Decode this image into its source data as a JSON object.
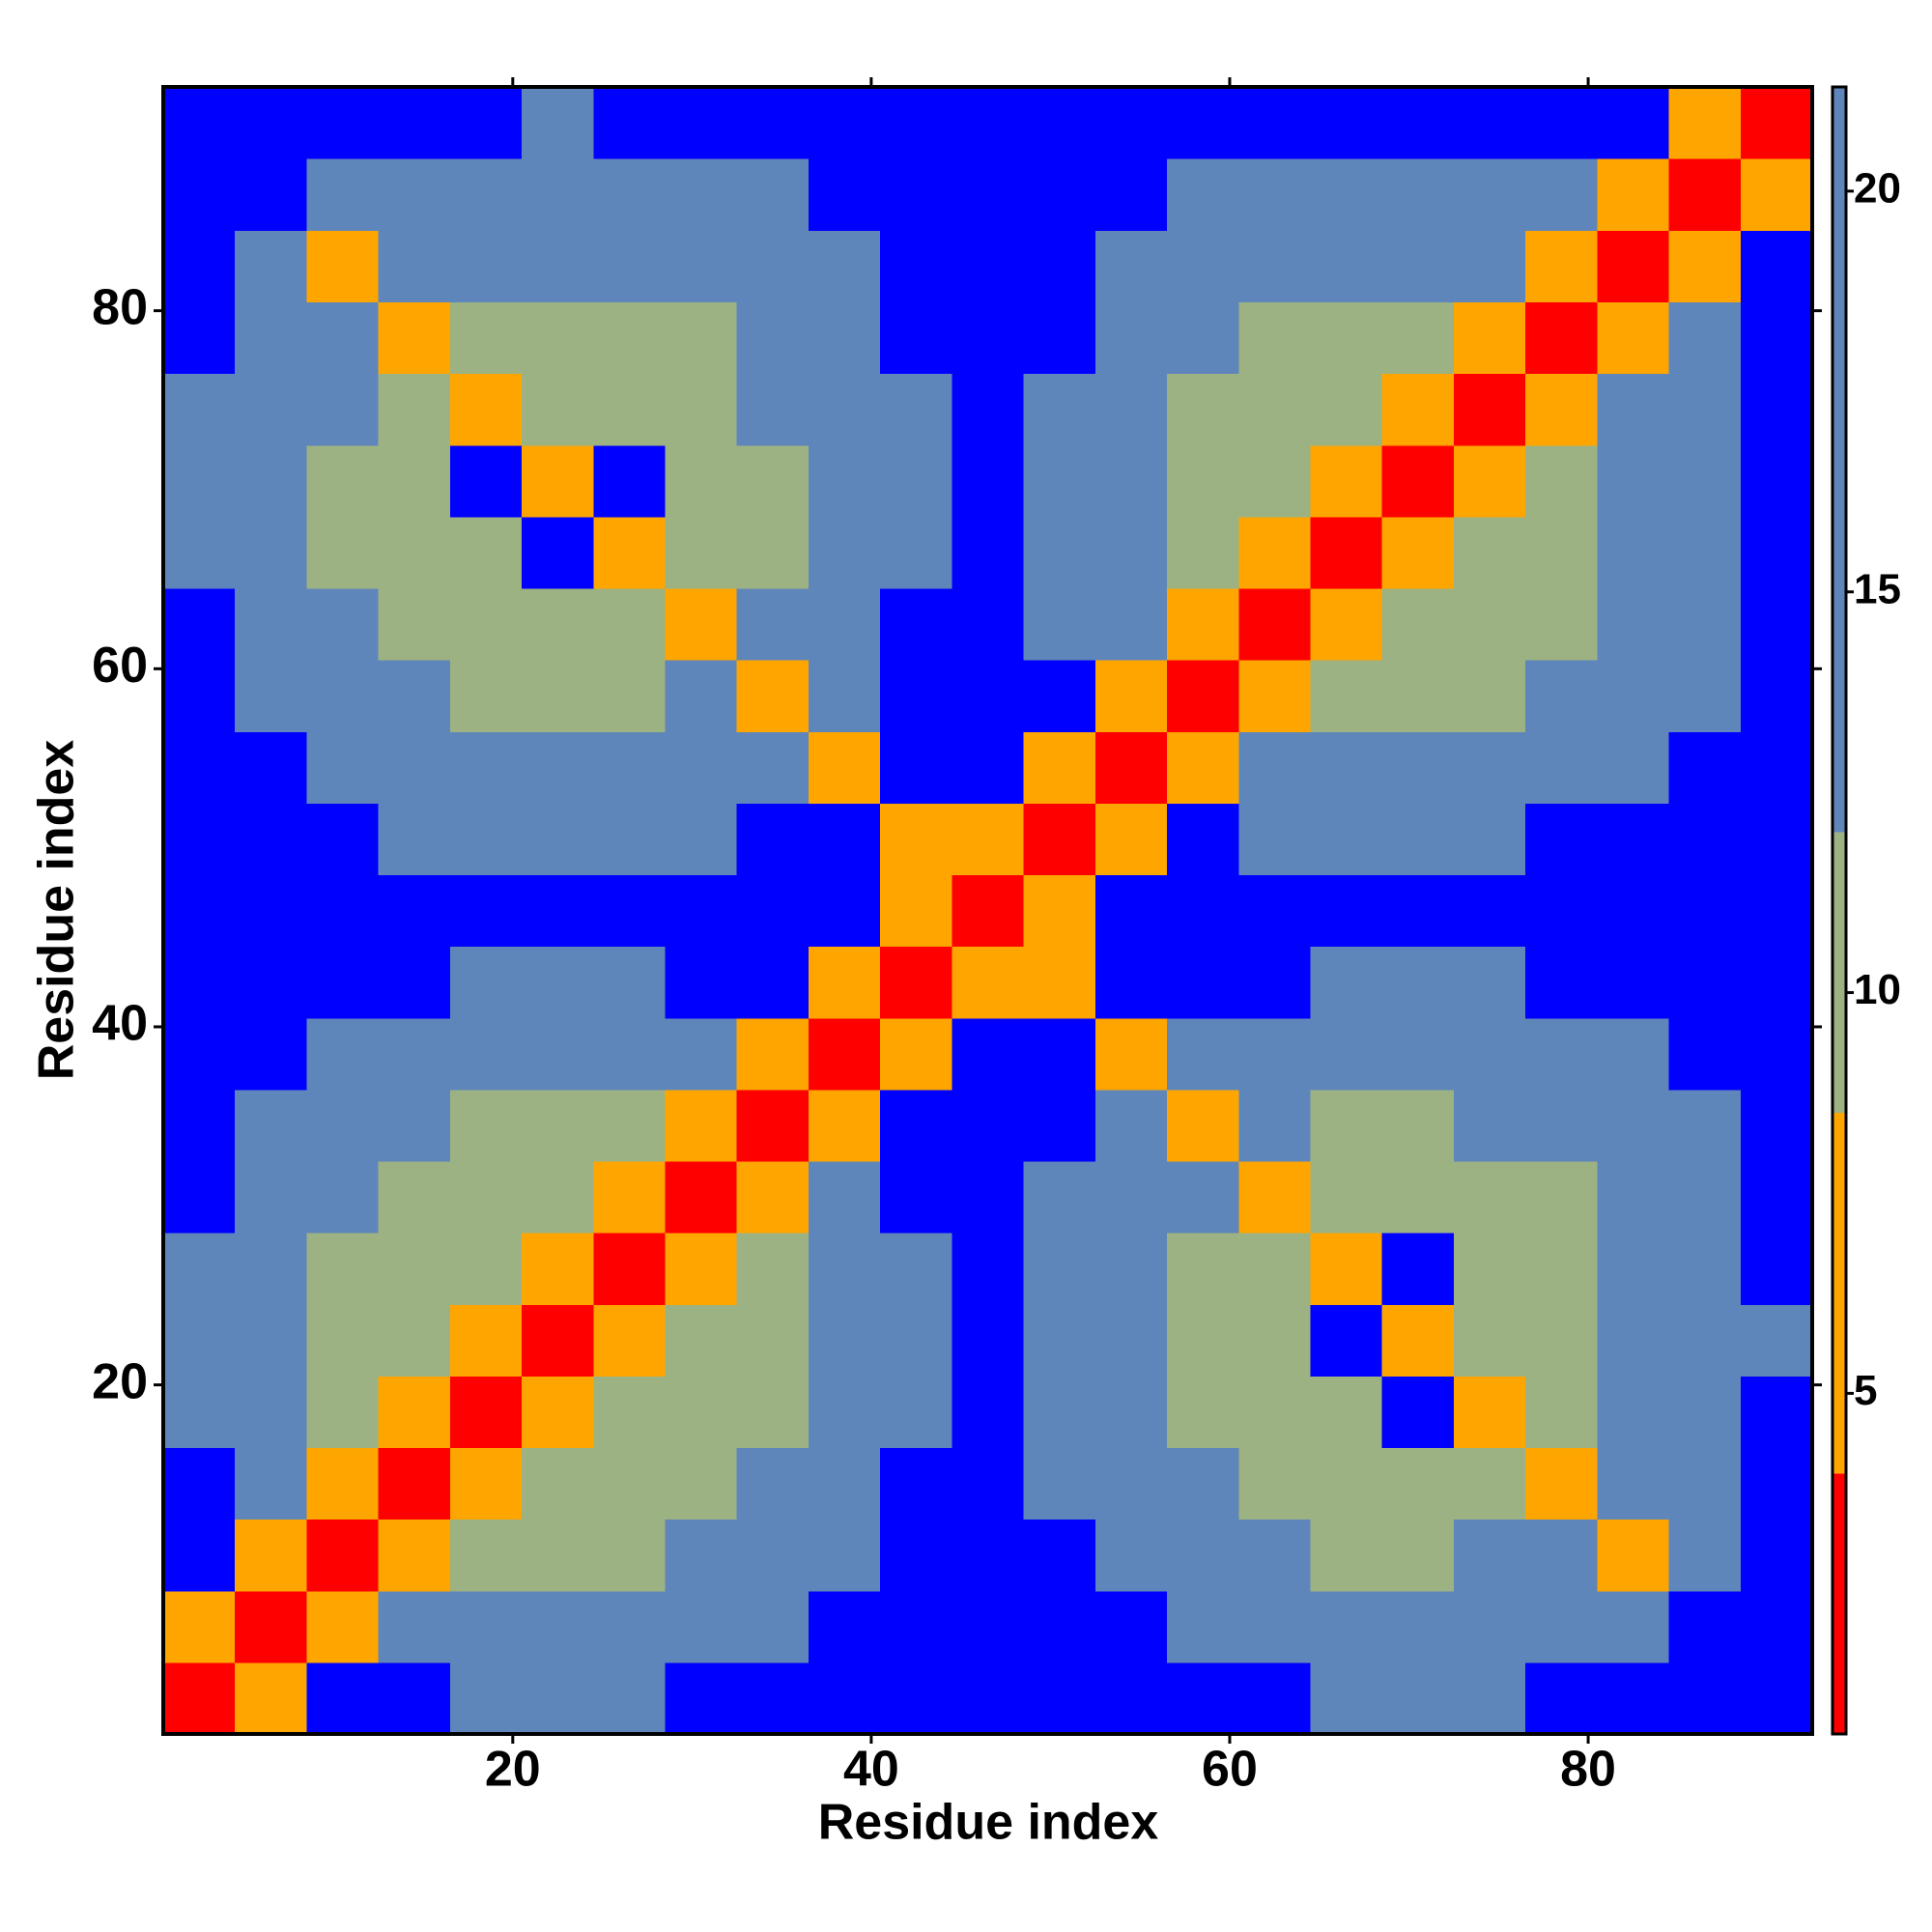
{
  "chart_data": {
    "type": "heatmap",
    "x_label": "Residue index",
    "y_label": "Residue index",
    "x_bins": [
      0.5,
      4.5,
      8.5,
      12.5,
      16.5,
      20.5,
      24.5,
      28.5,
      32.5,
      36.5,
      40.5,
      44.5,
      48.5,
      52.5,
      56.5,
      60.5,
      64.5,
      68.5,
      72.5,
      76.5,
      80.5,
      84.5,
      88.5,
      92.5
    ],
    "y_bins": [
      0.5,
      4.5,
      8.5,
      12.5,
      16.5,
      20.5,
      24.5,
      28.5,
      32.5,
      36.5,
      40.5,
      44.5,
      48.5,
      52.5,
      56.5,
      60.5,
      64.5,
      68.5,
      72.5,
      76.5,
      80.5,
      84.5,
      88.5,
      92.5
    ],
    "xlim": [
      0.5,
      92.5
    ],
    "ylim": [
      0.5,
      92.5
    ],
    "xticks": [
      20,
      40,
      60,
      80
    ],
    "yticks": [
      20,
      40,
      60,
      80
    ],
    "z": [
      [
        2,
        6,
        22,
        22,
        15,
        15,
        15,
        22,
        22,
        22,
        22,
        22,
        22,
        22,
        22,
        22,
        15,
        15,
        15,
        22,
        22,
        22,
        22
      ],
      [
        6,
        2,
        6,
        15,
        15,
        15,
        15,
        15,
        15,
        22,
        22,
        22,
        22,
        22,
        15,
        15,
        15,
        15,
        15,
        15,
        15,
        22,
        22
      ],
      [
        22,
        6,
        2,
        6,
        10,
        10,
        10,
        15,
        15,
        15,
        22,
        22,
        22,
        15,
        15,
        15,
        10,
        10,
        15,
        15,
        6,
        15,
        22
      ],
      [
        22,
        15,
        6,
        2,
        6,
        10,
        10,
        10,
        15,
        15,
        22,
        22,
        15,
        15,
        15,
        10,
        10,
        10,
        10,
        6,
        15,
        15,
        22
      ],
      [
        15,
        15,
        10,
        6,
        2,
        6,
        10,
        10,
        10,
        15,
        15,
        22,
        15,
        15,
        10,
        10,
        10,
        22,
        6,
        10,
        15,
        15,
        22
      ],
      [
        15,
        15,
        10,
        10,
        6,
        2,
        6,
        10,
        10,
        15,
        15,
        22,
        15,
        15,
        10,
        10,
        22,
        6,
        10,
        10,
        15,
        15,
        15
      ],
      [
        15,
        15,
        10,
        10,
        10,
        6,
        2,
        6,
        10,
        15,
        15,
        22,
        15,
        15,
        10,
        10,
        6,
        22,
        10,
        10,
        15,
        15,
        22
      ],
      [
        22,
        15,
        15,
        10,
        10,
        10,
        6,
        2,
        6,
        15,
        22,
        22,
        15,
        15,
        15,
        6,
        10,
        10,
        10,
        10,
        15,
        15,
        22
      ],
      [
        22,
        15,
        15,
        15,
        10,
        10,
        10,
        6,
        2,
        6,
        22,
        22,
        22,
        15,
        6,
        15,
        10,
        10,
        15,
        15,
        15,
        15,
        22
      ],
      [
        22,
        22,
        15,
        15,
        15,
        15,
        15,
        15,
        6,
        2,
        6,
        22,
        22,
        6,
        15,
        15,
        15,
        15,
        15,
        15,
        15,
        22,
        22
      ],
      [
        22,
        22,
        22,
        22,
        15,
        15,
        15,
        22,
        22,
        6,
        2,
        6,
        6,
        22,
        22,
        22,
        15,
        15,
        15,
        22,
        22,
        22,
        22
      ],
      [
        22,
        22,
        22,
        22,
        22,
        22,
        22,
        22,
        22,
        22,
        6,
        2,
        6,
        22,
        22,
        22,
        22,
        22,
        22,
        22,
        22,
        22,
        22
      ],
      [
        22,
        22,
        22,
        15,
        15,
        15,
        15,
        15,
        22,
        22,
        6,
        6,
        2,
        6,
        22,
        15,
        15,
        15,
        15,
        22,
        22,
        22,
        22
      ],
      [
        22,
        22,
        15,
        15,
        15,
        15,
        15,
        15,
        15,
        6,
        22,
        22,
        6,
        2,
        6,
        15,
        15,
        15,
        15,
        15,
        15,
        22,
        22
      ],
      [
        22,
        15,
        15,
        15,
        10,
        10,
        10,
        15,
        6,
        15,
        22,
        22,
        22,
        6,
        2,
        6,
        10,
        10,
        10,
        15,
        15,
        15,
        22
      ],
      [
        22,
        15,
        15,
        10,
        10,
        10,
        10,
        6,
        15,
        15,
        22,
        22,
        15,
        15,
        6,
        2,
        6,
        10,
        10,
        10,
        15,
        15,
        22
      ],
      [
        15,
        15,
        10,
        10,
        10,
        22,
        6,
        10,
        10,
        15,
        15,
        22,
        15,
        15,
        10,
        6,
        2,
        6,
        10,
        10,
        15,
        15,
        22
      ],
      [
        15,
        15,
        10,
        10,
        22,
        6,
        22,
        10,
        10,
        15,
        15,
        22,
        15,
        15,
        10,
        10,
        6,
        2,
        6,
        10,
        15,
        15,
        22
      ],
      [
        15,
        15,
        15,
        10,
        6,
        10,
        10,
        10,
        15,
        15,
        15,
        22,
        15,
        15,
        10,
        10,
        10,
        6,
        2,
        6,
        15,
        15,
        22
      ],
      [
        22,
        15,
        15,
        6,
        10,
        10,
        10,
        10,
        15,
        15,
        22,
        22,
        22,
        15,
        15,
        10,
        10,
        10,
        6,
        2,
        6,
        15,
        22
      ],
      [
        22,
        15,
        6,
        15,
        15,
        15,
        15,
        15,
        15,
        15,
        22,
        22,
        22,
        15,
        15,
        15,
        15,
        15,
        15,
        6,
        2,
        6,
        22
      ],
      [
        22,
        22,
        15,
        15,
        15,
        15,
        15,
        15,
        15,
        22,
        22,
        22,
        22,
        22,
        15,
        15,
        15,
        15,
        15,
        15,
        6,
        2,
        6
      ],
      [
        22,
        22,
        22,
        22,
        22,
        15,
        22,
        22,
        22,
        22,
        22,
        22,
        22,
        22,
        22,
        22,
        22,
        22,
        22,
        22,
        22,
        6,
        2
      ]
    ],
    "zlim": [
      0.75,
      21.3
    ],
    "zticks": [
      5,
      10,
      15,
      20
    ],
    "color_edges": [
      0.75,
      4,
      8.5,
      12,
      21.3
    ],
    "colors": [
      "#ff0000",
      "#ffa500",
      "#9db282",
      "#5f86ba"
    ],
    "over_color": "#0000ff"
  }
}
